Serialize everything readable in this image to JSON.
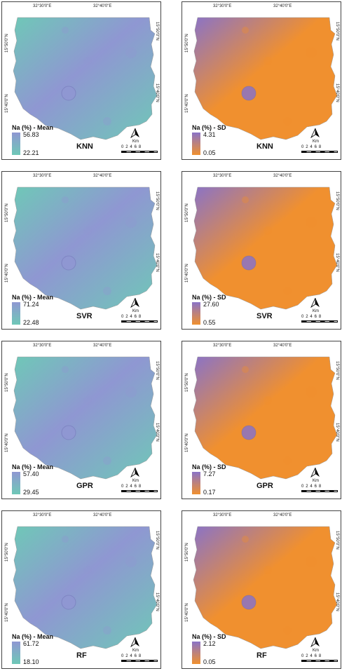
{
  "coords": {
    "lon_left": "32°30'0\"E",
    "lon_right": "32°40'0\"E",
    "lat_top": "15°50'0\"N",
    "lat_bottom": "15°40'0\"N"
  },
  "scale": {
    "unit": "Km",
    "ticks": "0 2 4 6 8"
  },
  "colors": {
    "mean_low": "#6fc8b7",
    "mean_high": "#8f97d2",
    "sd_low": "#f0902f",
    "sd_high": "#8a73c7"
  },
  "panels": [
    {
      "model": "KNN",
      "legend_title": "Na (%) - Mean",
      "max": "56.83",
      "min": "22.21",
      "kind": "mean"
    },
    {
      "model": "KNN",
      "legend_title": "Na (%) - SD",
      "max": "4.31",
      "min": "0.05",
      "kind": "sd"
    },
    {
      "model": "SVR",
      "legend_title": "Na (%) - Mean",
      "max": "71.24",
      "min": "22.48",
      "kind": "mean"
    },
    {
      "model": "SVR",
      "legend_title": "Na (%) - SD",
      "max": "27.60",
      "min": "0.55",
      "kind": "sd"
    },
    {
      "model": "GPR",
      "legend_title": "Na (%) - Mean",
      "max": "57.40",
      "min": "29.45",
      "kind": "mean"
    },
    {
      "model": "GPR",
      "legend_title": "Na (%) - SD",
      "max": "7.27",
      "min": "0.17",
      "kind": "sd"
    },
    {
      "model": "RF",
      "legend_title": "Na (%) - Mean",
      "max": "61.72",
      "min": "18.10",
      "kind": "mean"
    },
    {
      "model": "RF",
      "legend_title": "Na (%) - SD",
      "max": "2.12",
      "min": "0.05",
      "kind": "sd"
    }
  ]
}
